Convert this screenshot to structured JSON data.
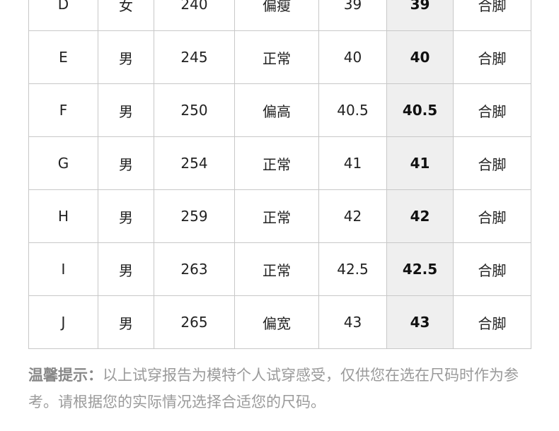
{
  "table": {
    "rows": [
      [
        "D",
        "女",
        "240",
        "偏瘦",
        "39",
        "39",
        "合脚"
      ],
      [
        "E",
        "男",
        "245",
        "正常",
        "40",
        "40",
        "合脚"
      ],
      [
        "F",
        "男",
        "250",
        "偏高",
        "40.5",
        "40.5",
        "合脚"
      ],
      [
        "G",
        "男",
        "254",
        "正常",
        "41",
        "41",
        "合脚"
      ],
      [
        "H",
        "男",
        "259",
        "正常",
        "42",
        "42",
        "合脚"
      ],
      [
        "I",
        "男",
        "263",
        "正常",
        "42.5",
        "42.5",
        "合脚"
      ],
      [
        "J",
        "男",
        "265",
        "偏宽",
        "43",
        "43",
        "合脚"
      ]
    ],
    "highlight_color": "#efefef"
  },
  "note": {
    "label": "温馨提示：",
    "text": "以上试穿报告为模特个人试穿感受，仅供您在选在尺码时作为参考。请根据您的实际情况选择合适您的尺码。"
  }
}
